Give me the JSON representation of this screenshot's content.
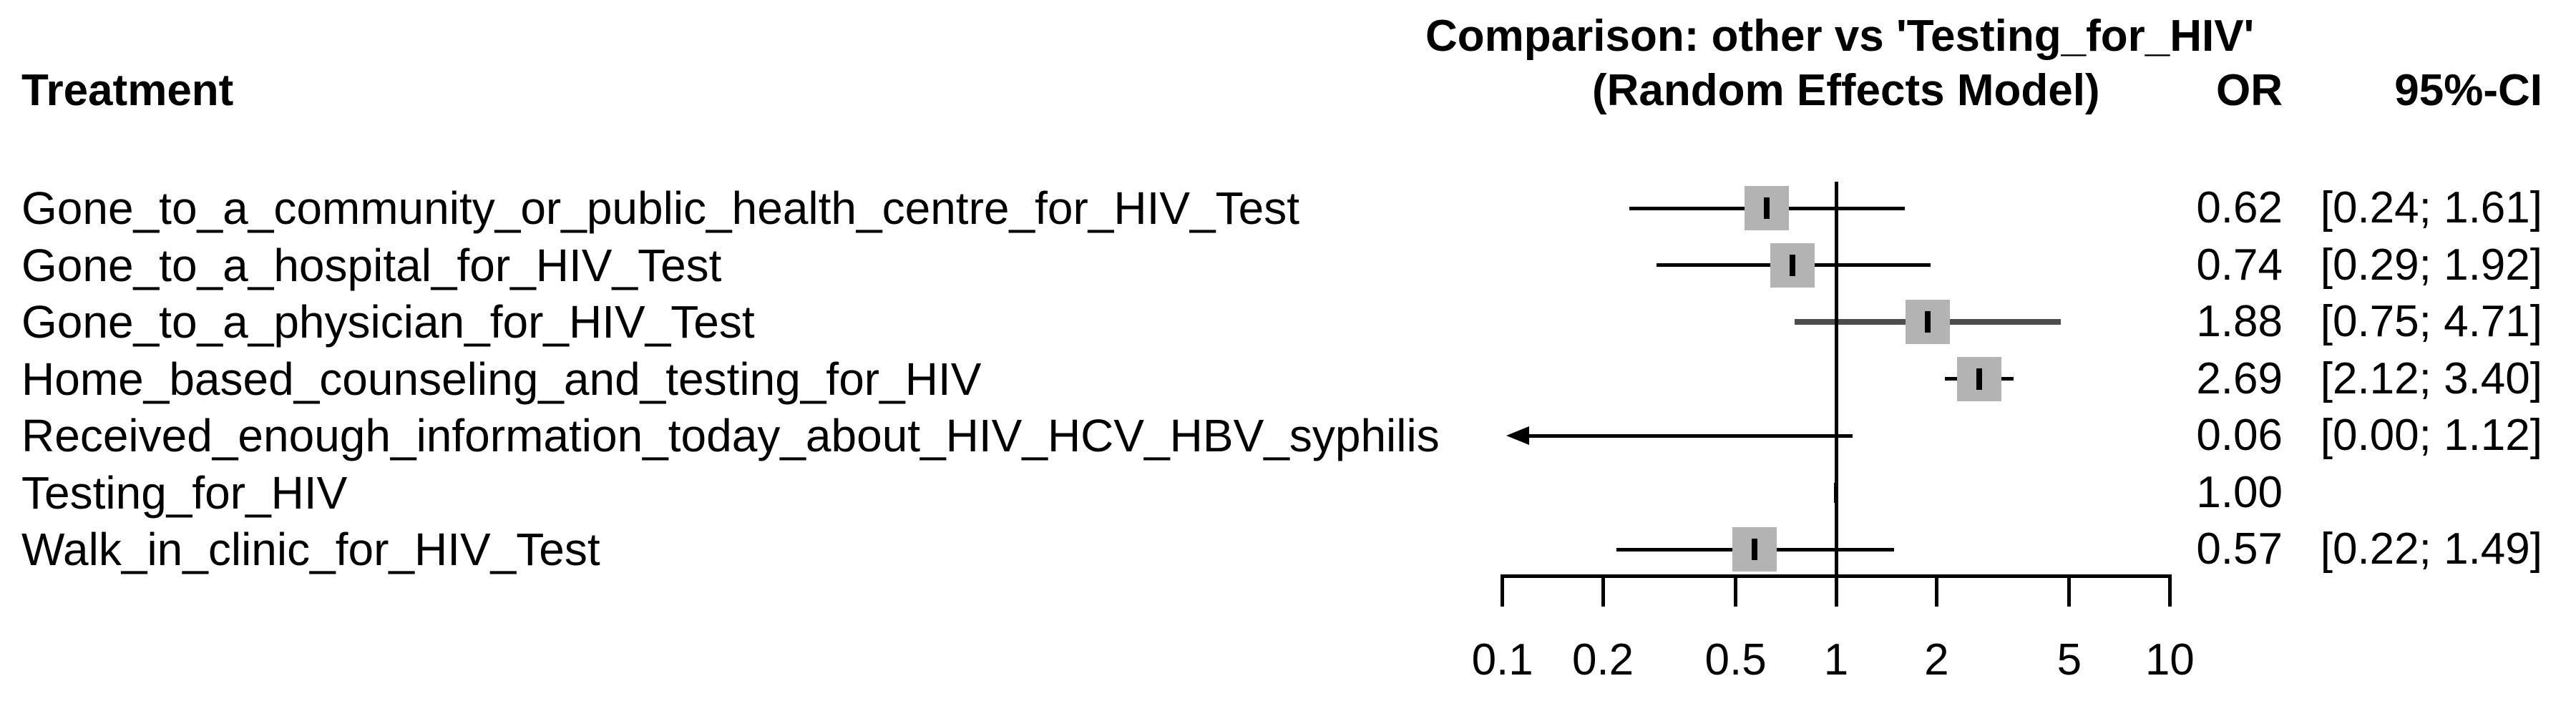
{
  "title": {
    "line1": "Comparison: other vs 'Testing_for_HIV'",
    "line2": "(Random Effects Model)"
  },
  "columns": {
    "treatment": "Treatment",
    "or": "OR",
    "ci": "95%-CI"
  },
  "rows": [
    {
      "label": "Gone_to_a_community_or_public_health_centre_for_HIV_Test",
      "or": "0.62",
      "ci": "[0.24; 1.61]",
      "estimate": 0.62,
      "low": 0.24,
      "high": 1.61,
      "marker": "square"
    },
    {
      "label": "Gone_to_a_hospital_for_HIV_Test",
      "or": "0.74",
      "ci": "[0.29; 1.92]",
      "estimate": 0.74,
      "low": 0.29,
      "high": 1.92,
      "marker": "square"
    },
    {
      "label": "Gone_to_a_physician_for_HIV_Test",
      "or": "1.88",
      "ci": "[0.75; 4.71]",
      "estimate": 1.88,
      "low": 0.75,
      "high": 4.71,
      "marker": "square-thick-line"
    },
    {
      "label": "Home_based_counseling_and_testing_for_HIV",
      "or": "2.69",
      "ci": "[2.12; 3.40]",
      "estimate": 2.69,
      "low": 2.12,
      "high": 3.4,
      "marker": "square"
    },
    {
      "label": "Received_enough_information_today_about_HIV_HCV_HBV_syphilis",
      "or": "0.06",
      "ci": "[0.00; 1.12]",
      "estimate": 0.06,
      "low": 0.0,
      "high": 1.12,
      "marker": "arrow-left"
    },
    {
      "label": "Testing_for_HIV",
      "or": "1.00",
      "ci": "",
      "estimate": 1.0,
      "low": null,
      "high": null,
      "marker": "reference"
    },
    {
      "label": "Walk_in_clinic_for_HIV_Test",
      "or": "0.57",
      "ci": "[0.22; 1.49]",
      "estimate": 0.57,
      "low": 0.22,
      "high": 1.49,
      "marker": "square"
    }
  ],
  "axis": {
    "scale": "log",
    "tick_values": [
      0.1,
      0.2,
      0.5,
      1,
      2,
      5,
      10
    ],
    "tick_labels": [
      "0.1",
      "0.2",
      "0.5",
      "1",
      "2",
      "5",
      "10"
    ],
    "reference_value": 1
  },
  "colors": {
    "square_fill": "#b3b3b3",
    "line": "#000000",
    "thick_line": "#4d4d4d",
    "background": "#ffffff"
  },
  "chart_data": {
    "type": "scatter",
    "subtype": "forest_plot",
    "title": "Comparison: other vs 'Testing_for_HIV' (Random Effects Model)",
    "xscale": "log",
    "xlabel": "",
    "xlim": [
      0.1,
      10
    ],
    "xticks": [
      0.1,
      0.2,
      0.5,
      1,
      2,
      5,
      10
    ],
    "reference_line": 1.0,
    "legend": [
      "OR",
      "95%-CI"
    ],
    "categories": [
      "Gone_to_a_community_or_public_health_centre_for_HIV_Test",
      "Gone_to_a_hospital_for_HIV_Test",
      "Gone_to_a_physician_for_HIV_Test",
      "Home_based_counseling_and_testing_for_HIV",
      "Received_enough_information_today_about_HIV_HCV_HBV_syphilis",
      "Testing_for_HIV",
      "Walk_in_clinic_for_HIV_Test"
    ],
    "series": [
      {
        "name": "OR",
        "values": [
          0.62,
          0.74,
          1.88,
          2.69,
          0.06,
          1.0,
          0.57
        ]
      },
      {
        "name": "CI_lower",
        "values": [
          0.24,
          0.29,
          0.75,
          2.12,
          0.0,
          null,
          0.22
        ]
      },
      {
        "name": "CI_upper",
        "values": [
          1.61,
          1.92,
          4.71,
          3.4,
          1.12,
          null,
          1.49
        ]
      }
    ]
  }
}
